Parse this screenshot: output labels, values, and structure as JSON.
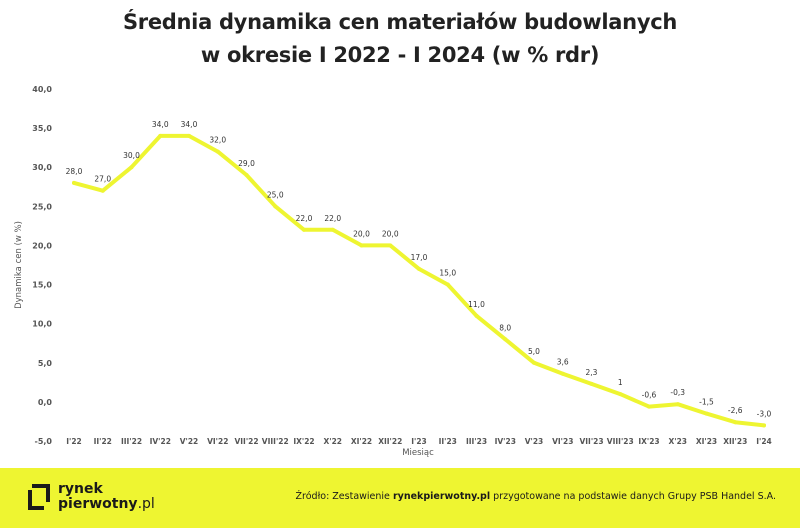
{
  "title": {
    "line1": "Średnia dynamika cen materiałów budowlanych",
    "line2": "w okresie I 2022 - I 2024 (w % rdr)"
  },
  "chart_data": {
    "type": "line",
    "title": "Średnia dynamika cen materiałów budowlanych w okresie I 2022 - I 2024 (w % rdr)",
    "xlabel": "Miesiąc",
    "ylabel": "Dynamika cen (w %)",
    "ylim": [
      -5,
      40
    ],
    "yticks": [
      "-5,0",
      "0,0",
      "5,0",
      "10,0",
      "15,0",
      "20,0",
      "25,0",
      "30,0",
      "35,0",
      "40,0"
    ],
    "grid": false,
    "line_color": "#eef531",
    "categories": [
      "I'22",
      "II'22",
      "III'22",
      "IV'22",
      "V'22",
      "VI'22",
      "VII'22",
      "VIII'22",
      "IX'22",
      "X'22",
      "XI'22",
      "XII'22",
      "I'23",
      "II'23",
      "III'23",
      "IV'23",
      "V'23",
      "VI'23",
      "VII'23",
      "VIII'23",
      "IX'23",
      "X'23",
      "XI'23",
      "XII'23",
      "I'24"
    ],
    "values": [
      28.0,
      27.0,
      30.0,
      34.0,
      34.0,
      32.0,
      29.0,
      25.0,
      22.0,
      22.0,
      20.0,
      20.0,
      17.0,
      15.0,
      11.0,
      8.0,
      5.0,
      3.6,
      2.3,
      1,
      -0.6,
      -0.3,
      -1.5,
      -2.6,
      -3.0
    ],
    "labels": [
      "28,0",
      "27,0",
      "30,0",
      "34,0",
      "34,0",
      "32,0",
      "29,0",
      "25,0",
      "22,0",
      "22,0",
      "20,0",
      "20,0",
      "17,0",
      "15,0",
      "11,0",
      "8,0",
      "5,0",
      "3,6",
      "2,3",
      "1",
      "-0,6",
      "-0,3",
      "-1,5",
      "-2,6",
      "-3,0"
    ]
  },
  "footer": {
    "logo_line1": "rynek",
    "logo_line2_bold": "pierwotny",
    "logo_line2_suffix": ".pl",
    "source_prefix": "Źródło: Zestawienie ",
    "source_bold": "rynekpierwotny.pl",
    "source_suffix": " przygotowane na podstawie danych Grupy PSB Handel S.A.",
    "background": "#eef531"
  }
}
